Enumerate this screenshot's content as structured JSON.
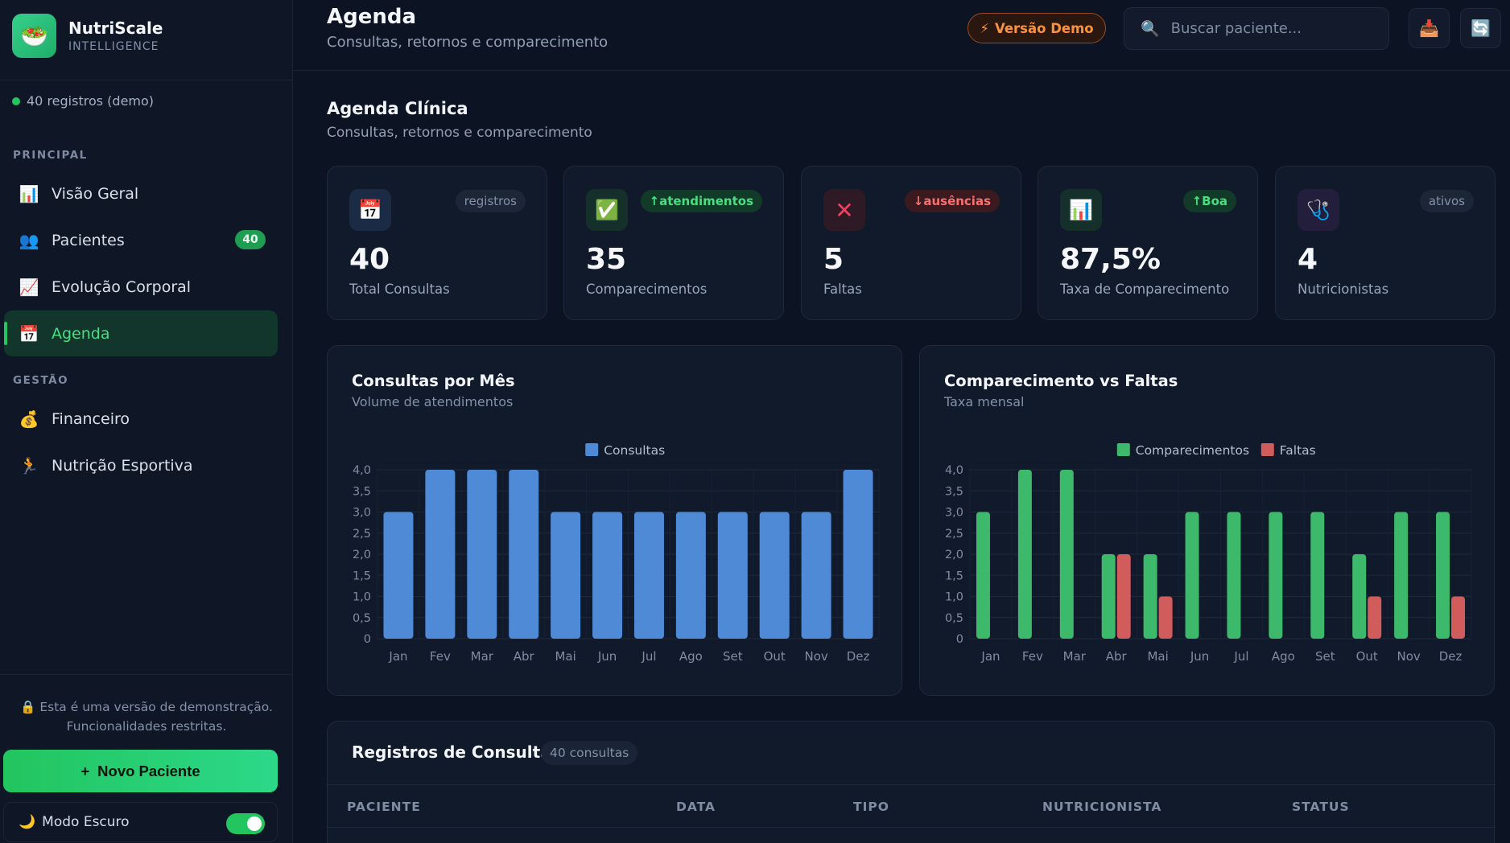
{
  "brand": {
    "name": "NutriScale",
    "subtitle": "INTELLIGENCE",
    "logo_icon": "salad-icon"
  },
  "sidebar": {
    "records_status": "40 registros (demo)",
    "sections": [
      {
        "label": "PRINCIPAL"
      },
      {
        "label": "GESTÃO"
      }
    ],
    "items": [
      {
        "label": "Visão Geral",
        "icon": "bar-chart-icon"
      },
      {
        "label": "Pacientes",
        "icon": "people-icon",
        "badge": "40"
      },
      {
        "label": "Evolução Corporal",
        "icon": "trend-chart-icon"
      },
      {
        "label": "Agenda",
        "icon": "calendar-icon",
        "active": true
      },
      {
        "label": "Financeiro",
        "icon": "money-bag-icon"
      },
      {
        "label": "Nutrição Esportiva",
        "icon": "runner-icon"
      }
    ],
    "demo_note_line1": "Esta é uma versão de demonstração.",
    "demo_note_line2": "Funcionalidades restritas.",
    "new_patient_label": "Novo Paciente",
    "dark_mode_label": "Modo Escuro",
    "dark_mode_on": true
  },
  "header": {
    "title": "Agenda",
    "subtitle": "Consultas, retornos e comparecimento",
    "demo_pill": "Versão Demo",
    "search_placeholder": "Buscar paciente..."
  },
  "page": {
    "title": "Agenda Clínica",
    "subtitle": "Consultas, retornos e comparecimento"
  },
  "stats": [
    {
      "value": "40",
      "label": "Total Consultas",
      "tag": "registros",
      "icon": "calendar-icon"
    },
    {
      "value": "35",
      "label": "Comparecimentos",
      "tag": "↑atendimentos",
      "icon": "check-icon"
    },
    {
      "value": "5",
      "label": "Faltas",
      "tag": "↓ausências",
      "icon": "cross-icon"
    },
    {
      "value": "87,5%",
      "label": "Taxa de Comparecimento",
      "tag": "↑Boa",
      "icon": "bar-chart-icon"
    },
    {
      "value": "4",
      "label": "Nutricionistas",
      "tag": "ativos",
      "icon": "stethoscope-icon"
    }
  ],
  "chart_data": [
    {
      "type": "bar",
      "title": "Consultas por Mês",
      "subtitle": "Volume de atendimentos",
      "categories": [
        "Jan",
        "Fev",
        "Mar",
        "Abr",
        "Mai",
        "Jun",
        "Jul",
        "Ago",
        "Set",
        "Out",
        "Nov",
        "Dez"
      ],
      "series": [
        {
          "name": "Consultas",
          "color": "#4f8ad6",
          "values": [
            3,
            4,
            4,
            4,
            3,
            3,
            3,
            3,
            3,
            3,
            3,
            4
          ]
        }
      ],
      "ylim": [
        0,
        4
      ],
      "yticks": [
        "0",
        "0,5",
        "1,0",
        "1,5",
        "2,0",
        "2,5",
        "3,0",
        "3,5",
        "4,0"
      ],
      "legend": "top",
      "grid": true
    },
    {
      "type": "bar",
      "title": "Comparecimento vs Faltas",
      "subtitle": "Taxa mensal",
      "categories": [
        "Jan",
        "Fev",
        "Mar",
        "Abr",
        "Mai",
        "Jun",
        "Jul",
        "Ago",
        "Set",
        "Out",
        "Nov",
        "Dez"
      ],
      "series": [
        {
          "name": "Comparecimentos",
          "color": "#3cb96a",
          "values": [
            3,
            4,
            4,
            2,
            2,
            3,
            3,
            3,
            3,
            2,
            3,
            3
          ]
        },
        {
          "name": "Faltas",
          "color": "#d15c5c",
          "values": [
            0,
            0,
            0,
            2,
            1,
            0,
            0,
            0,
            0,
            1,
            0,
            1
          ]
        }
      ],
      "ylim": [
        0,
        4
      ],
      "yticks": [
        "0",
        "0,5",
        "1,0",
        "1,5",
        "2,0",
        "2,5",
        "3,0",
        "3,5",
        "4,0"
      ],
      "legend": "top",
      "grid": true
    }
  ],
  "records": {
    "title": "Registros de Consulta",
    "count": "40 consultas",
    "columns": [
      "PACIENTE",
      "DATA",
      "TIPO",
      "NUTRICIONISTA",
      "STATUS"
    ]
  }
}
